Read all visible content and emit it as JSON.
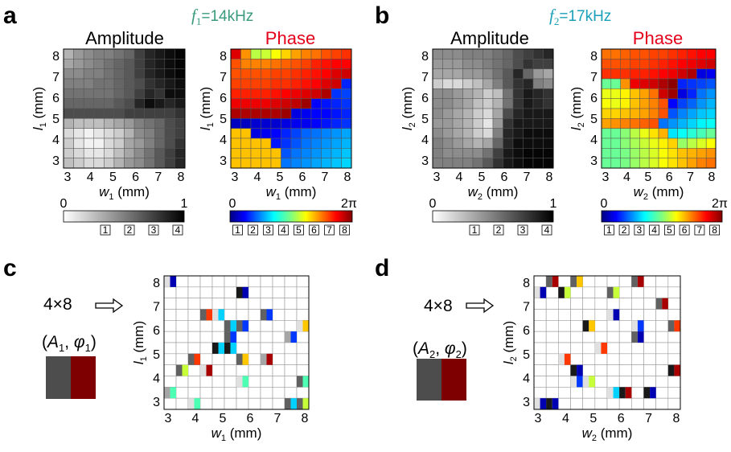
{
  "panels": {
    "a": {
      "label": "a",
      "freq": {
        "sym": "f",
        "sub": "1",
        "rest": "=14kHz"
      }
    },
    "b": {
      "label": "b",
      "freq": {
        "sym": "f",
        "sub": "2",
        "rest": "=17kHz"
      }
    },
    "c": {
      "label": "c",
      "label_4x8": "4×8"
    },
    "d": {
      "label": "d",
      "label_4x8": "4×8"
    }
  },
  "titles": {
    "amplitude": "Amplitude",
    "phase": "Phase"
  },
  "axes": {
    "x_ticks": [
      "3",
      "4",
      "5",
      "6",
      "7",
      "8"
    ],
    "y_ticks": [
      "8",
      "7",
      "6",
      "5",
      "4",
      "3"
    ],
    "x_label": {
      "sym": "w",
      "unit": " (mm)"
    },
    "y_label": {
      "sym": "l",
      "unit": " (mm)"
    },
    "sub1": "1",
    "sub2": "2"
  },
  "colorbars": {
    "amp_min": "0",
    "amp_max": "1",
    "phase_min": "0",
    "phase_max": "2π",
    "amp_boxes": [
      "1",
      "2",
      "3",
      "4"
    ],
    "phase_boxes": [
      "1",
      "2",
      "3",
      "4",
      "5",
      "6",
      "7",
      "8"
    ]
  },
  "pair_labels": {
    "c": {
      "A": "A",
      "phi": "φ",
      "sub": "1"
    },
    "d": {
      "A": "A",
      "phi": "φ",
      "sub": "2"
    }
  },
  "colors": {
    "freq1": "#3a9a7e",
    "freq2": "#1aa0b8",
    "phase_title": "#e4001b",
    "amp_swatch": "#4d4d4d",
    "phase_swatch": "#7f0000"
  },
  "chart_data": [
    {
      "type": "heatmap",
      "panel": "a",
      "title": "Amplitude",
      "grid_size": [
        12,
        12
      ],
      "value_range": [
        0,
        1
      ],
      "rows_top_to_bottom": [
        [
          0.3,
          0.4,
          0.45,
          0.5,
          0.5,
          0.55,
          0.6,
          0.75,
          0.85,
          0.9,
          0.95,
          0.98
        ],
        [
          0.35,
          0.4,
          0.45,
          0.5,
          0.55,
          0.6,
          0.65,
          0.75,
          0.85,
          0.9,
          0.95,
          0.98
        ],
        [
          0.45,
          0.45,
          0.5,
          0.5,
          0.55,
          0.6,
          0.65,
          0.75,
          0.85,
          0.9,
          0.95,
          0.98
        ],
        [
          0.5,
          0.5,
          0.5,
          0.55,
          0.55,
          0.6,
          0.65,
          0.7,
          0.8,
          0.85,
          0.9,
          0.95
        ],
        [
          0.55,
          0.55,
          0.55,
          0.55,
          0.55,
          0.6,
          0.65,
          0.75,
          0.85,
          0.8,
          0.95,
          0.95
        ],
        [
          0.6,
          0.6,
          0.6,
          0.6,
          0.6,
          0.65,
          0.7,
          0.85,
          0.95,
          0.9,
          0.85,
          0.9
        ],
        [
          0.7,
          0.7,
          0.7,
          0.7,
          0.7,
          0.7,
          0.75,
          0.75,
          0.75,
          0.75,
          0.75,
          0.8
        ],
        [
          0.3,
          0.25,
          0.25,
          0.25,
          0.3,
          0.35,
          0.4,
          0.5,
          0.55,
          0.6,
          0.7,
          0.75
        ],
        [
          0.15,
          0.1,
          0.05,
          0.1,
          0.15,
          0.2,
          0.3,
          0.45,
          0.5,
          0.6,
          0.7,
          0.75
        ],
        [
          0.2,
          0.1,
          0.05,
          0.05,
          0.15,
          0.2,
          0.35,
          0.4,
          0.5,
          0.6,
          0.7,
          0.8
        ],
        [
          0.2,
          0.15,
          0.1,
          0.1,
          0.15,
          0.25,
          0.35,
          0.45,
          0.55,
          0.65,
          0.75,
          0.85
        ],
        [
          0.25,
          0.2,
          0.15,
          0.15,
          0.2,
          0.3,
          0.4,
          0.45,
          0.55,
          0.65,
          0.75,
          0.85
        ]
      ]
    },
    {
      "type": "heatmap",
      "panel": "a",
      "title": "Phase",
      "grid_size": [
        12,
        12
      ],
      "value_range": [
        0,
        6.283
      ],
      "rows_top_to_bottom": [
        [
          5.7,
          4.6,
          3.5,
          3.6,
          3.9,
          4.2,
          4.5,
          4.7,
          4.8,
          5.0,
          5.1,
          5.2
        ],
        [
          5.0,
          4.7,
          4.7,
          4.7,
          4.8,
          4.9,
          5.0,
          5.1,
          5.3,
          5.4,
          5.5,
          5.5
        ],
        [
          5.0,
          5.0,
          5.0,
          5.0,
          5.1,
          5.1,
          5.2,
          5.3,
          5.4,
          5.5,
          5.7,
          5.8
        ],
        [
          5.1,
          5.1,
          5.1,
          5.1,
          5.2,
          5.2,
          5.3,
          5.4,
          5.5,
          5.7,
          5.8,
          1.0
        ],
        [
          5.3,
          5.3,
          5.3,
          5.3,
          5.4,
          5.5,
          5.6,
          5.7,
          5.8,
          6.0,
          1.1,
          1.2
        ],
        [
          5.6,
          5.6,
          5.6,
          5.6,
          5.7,
          5.8,
          5.9,
          6.1,
          0.8,
          0.9,
          1.0,
          1.1
        ],
        [
          6.0,
          6.0,
          6.0,
          6.0,
          6.0,
          6.1,
          0.6,
          0.7,
          0.8,
          0.8,
          0.9,
          1.0
        ],
        [
          0.4,
          0.4,
          0.5,
          0.5,
          0.5,
          0.6,
          0.7,
          0.7,
          0.8,
          0.9,
          1.0,
          1.1
        ],
        [
          4.3,
          4.3,
          0.6,
          0.7,
          0.8,
          1.0,
          1.2,
          1.4,
          1.5,
          1.6,
          1.7,
          1.8
        ],
        [
          4.3,
          4.3,
          4.3,
          4.3,
          0.9,
          1.1,
          1.3,
          1.5,
          1.6,
          1.7,
          1.8,
          1.9
        ],
        [
          4.3,
          4.3,
          4.3,
          4.3,
          4.3,
          1.3,
          1.5,
          1.6,
          1.7,
          1.8,
          1.9,
          2.0
        ],
        [
          4.3,
          4.3,
          4.3,
          4.3,
          4.3,
          1.5,
          1.6,
          1.7,
          1.8,
          1.9,
          2.0,
          2.1
        ]
      ]
    },
    {
      "type": "heatmap",
      "panel": "b",
      "title": "Amplitude",
      "grid_size": [
        12,
        12
      ],
      "value_range": [
        0,
        1
      ],
      "rows_top_to_bottom": [
        [
          0.45,
          0.45,
          0.45,
          0.5,
          0.5,
          0.5,
          0.55,
          0.6,
          0.7,
          0.75,
          0.8,
          0.85
        ],
        [
          0.4,
          0.4,
          0.4,
          0.45,
          0.45,
          0.5,
          0.55,
          0.6,
          0.7,
          0.8,
          0.75,
          0.75
        ],
        [
          0.35,
          0.35,
          0.35,
          0.4,
          0.4,
          0.45,
          0.55,
          0.65,
          0.85,
          0.6,
          0.4,
          0.35
        ],
        [
          0.2,
          0.15,
          0.15,
          0.2,
          0.25,
          0.35,
          0.5,
          0.65,
          0.8,
          0.85,
          0.5,
          0.45
        ],
        [
          0.45,
          0.45,
          0.4,
          0.35,
          0.3,
          0.2,
          0.25,
          0.55,
          0.8,
          0.9,
          0.85,
          0.8
        ],
        [
          0.45,
          0.45,
          0.4,
          0.35,
          0.25,
          0.2,
          0.3,
          0.55,
          0.8,
          0.9,
          0.85,
          0.8
        ],
        [
          0.45,
          0.4,
          0.35,
          0.3,
          0.2,
          0.15,
          0.35,
          0.7,
          0.85,
          0.9,
          0.9,
          0.9
        ],
        [
          0.4,
          0.4,
          0.35,
          0.3,
          0.2,
          0.1,
          0.4,
          0.8,
          0.9,
          0.9,
          0.9,
          0.9
        ],
        [
          0.45,
          0.4,
          0.35,
          0.3,
          0.2,
          0.15,
          0.5,
          0.85,
          0.9,
          0.95,
          0.95,
          0.95
        ],
        [
          0.5,
          0.45,
          0.4,
          0.35,
          0.3,
          0.35,
          0.6,
          0.85,
          0.95,
          0.95,
          0.95,
          0.95
        ],
        [
          0.5,
          0.45,
          0.45,
          0.45,
          0.45,
          0.55,
          0.75,
          0.9,
          0.95,
          0.98,
          0.98,
          0.98
        ],
        [
          0.5,
          0.5,
          0.5,
          0.5,
          0.55,
          0.65,
          0.8,
          0.9,
          0.95,
          0.98,
          0.98,
          0.98
        ]
      ]
    },
    {
      "type": "heatmap",
      "panel": "b",
      "title": "Phase",
      "grid_size": [
        12,
        12
      ],
      "value_range": [
        0,
        6.283
      ],
      "rows_top_to_bottom": [
        [
          4.8,
          4.8,
          4.9,
          5.0,
          5.0,
          5.1,
          5.1,
          5.2,
          5.3,
          5.4,
          5.5,
          5.5
        ],
        [
          5.0,
          5.0,
          5.0,
          5.1,
          5.1,
          5.2,
          5.3,
          5.4,
          5.5,
          5.6,
          5.7,
          5.8
        ],
        [
          5.2,
          5.2,
          5.2,
          5.3,
          5.3,
          5.4,
          5.5,
          5.6,
          5.8,
          6.0,
          0.6,
          0.7
        ],
        [
          3.0,
          3.0,
          4.6,
          5.6,
          5.7,
          5.8,
          6.0,
          6.2,
          1.0,
          1.1,
          1.2,
          1.3
        ],
        [
          3.8,
          3.8,
          4.0,
          4.3,
          4.5,
          4.8,
          5.8,
          6.1,
          0.6,
          1.0,
          1.5,
          1.7
        ],
        [
          3.9,
          3.8,
          4.0,
          4.3,
          4.5,
          4.7,
          5.0,
          0.8,
          1.2,
          1.4,
          1.7,
          1.9
        ],
        [
          4.2,
          4.2,
          4.3,
          4.4,
          4.5,
          4.7,
          5.0,
          1.3,
          1.6,
          1.8,
          2.0,
          2.1
        ],
        [
          4.5,
          4.6,
          4.7,
          4.8,
          4.9,
          5.0,
          1.5,
          1.7,
          1.9,
          2.1,
          2.3,
          2.4
        ],
        [
          3.0,
          3.0,
          3.2,
          3.5,
          3.8,
          4.1,
          4.4,
          2.2,
          2.4,
          2.6,
          2.8,
          3.0
        ],
        [
          3.0,
          3.0,
          3.2,
          3.4,
          3.6,
          3.8,
          4.0,
          4.2,
          3.3,
          3.5,
          3.7,
          3.9
        ],
        [
          3.0,
          3.0,
          3.1,
          3.3,
          3.5,
          3.7,
          3.9,
          4.1,
          4.3,
          4.4,
          4.5,
          4.6
        ],
        [
          3.0,
          3.0,
          3.1,
          3.3,
          3.5,
          3.7,
          3.9,
          4.1,
          4.3,
          4.5,
          4.7,
          4.8
        ]
      ]
    },
    {
      "type": "heatmap",
      "panel": "c",
      "grid_size": [
        12,
        12
      ],
      "note": "cells: [row_top_to_bottom, col, amp_level 1-4, phase_level 1-8]",
      "cells": [
        [
          0,
          4,
          3,
          0
        ],
        [
          0,
          5,
          0,
          3
        ],
        [
          0,
          6,
          4,
          6
        ],
        [
          0,
          7,
          0,
          5
        ],
        [
          0,
          8,
          0,
          0
        ],
        [
          0,
          9,
          0,
          3
        ],
        [
          0,
          10,
          0,
          5
        ],
        [
          0,
          11,
          0,
          0
        ],
        [
          1,
          3,
          3,
          0
        ],
        [
          1,
          3,
          0,
          5
        ],
        [
          1,
          11,
          0,
          6
        ],
        [
          2,
          8,
          4,
          6
        ],
        [
          2,
          8,
          0,
          7
        ],
        [
          3,
          2,
          3,
          0
        ],
        [
          3,
          3,
          0,
          6
        ],
        [
          3,
          6,
          0,
          3
        ],
        [
          3,
          10,
          4,
          0
        ],
        [
          3,
          11,
          0,
          7
        ],
        [
          4,
          4,
          2,
          0
        ],
        [
          4,
          4,
          0,
          2
        ],
        [
          4,
          5,
          4,
          0
        ],
        [
          4,
          5,
          0,
          8
        ],
        [
          4,
          6,
          0,
          2
        ],
        [
          4,
          8,
          4,
          0
        ],
        [
          4,
          9,
          0,
          1
        ],
        [
          4,
          10,
          0,
          8
        ]
      ]
    },
    {
      "type": "heatmap",
      "panel": "d",
      "grid_size": [
        12,
        12
      ],
      "note": "cells: [row_top_to_bottom, col, amp_level 1-4, phase_level 1-8]"
    }
  ]
}
